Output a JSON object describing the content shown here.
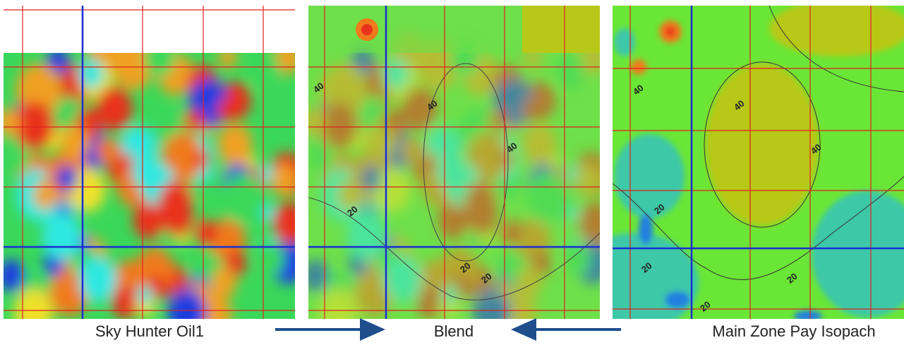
{
  "panels": [
    {
      "caption": "Sky Hunter Oil1"
    },
    {
      "caption": "Blend",
      "contour_labels": [
        "40",
        "40",
        "40",
        "20",
        "20",
        "20"
      ]
    },
    {
      "caption": "Main Zone Pay Isopach",
      "contour_labels": [
        "40",
        "40",
        "40",
        "20",
        "20",
        "20",
        "20"
      ]
    }
  ]
}
